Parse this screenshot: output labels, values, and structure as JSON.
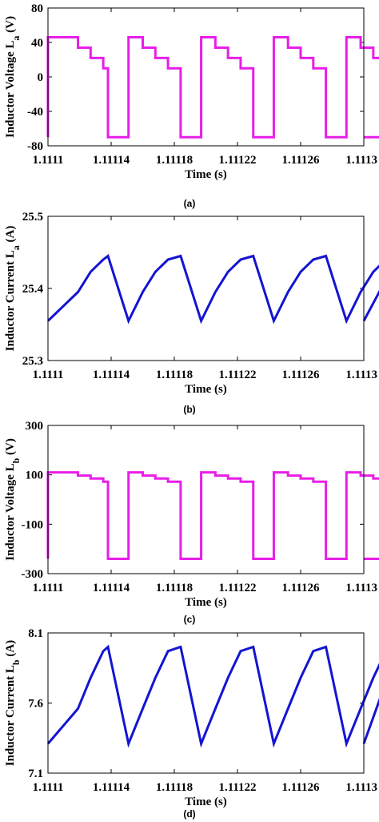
{
  "chart_data": [
    {
      "type": "line",
      "panel_label": "(a)",
      "xlabel": "Time (s)",
      "ylabel_main": "Inductor  Voltage  L",
      "ylabel_sub": "a",
      "ylabel_unit": " (V)",
      "xlim": [
        1.1111,
        1.1113
      ],
      "ylim": [
        -80,
        80
      ],
      "yticks": [
        80,
        40,
        0,
        -40,
        -80
      ],
      "ytick_labels": [
        "80",
        "40",
        "0",
        "-40",
        "-80"
      ],
      "xticks": [
        1.1111,
        1.11114,
        1.11118,
        1.11122,
        1.11126,
        1.1113
      ],
      "xtick_labels": [
        "1.1111",
        "1.11114",
        "1.11118",
        "1.11122",
        "1.11126",
        "1.1113"
      ],
      "color": "#e81ee8",
      "x": [
        1.1111,
        1.1111,
        1.111119,
        1.111119,
        1.111127,
        1.111127,
        1.111135,
        1.111135,
        1.111138,
        1.111138,
        1.111151,
        1.111151,
        1.11116,
        1.11116,
        1.111168,
        1.111168,
        1.111176,
        1.111176,
        1.111184,
        1.111184,
        1.111197,
        1.111197,
        1.111206,
        1.111206,
        1.111214,
        1.111214,
        1.111222,
        1.111222,
        1.11123,
        1.11123,
        1.111243,
        1.111243,
        1.111252,
        1.111252,
        1.11126,
        1.11126,
        1.111268,
        1.111268,
        1.111276,
        1.111276,
        1.111289,
        1.111289,
        1.111298,
        1.111298,
        1.111306,
        1.111306,
        1.111314,
        1.111314,
        1.111322,
        1.111322,
        1.1113
      ],
      "y": [
        -70,
        46,
        46,
        34,
        34,
        22,
        22,
        10,
        10,
        -70,
        -70,
        46,
        46,
        34,
        34,
        22,
        22,
        10,
        10,
        -70,
        -70,
        46,
        46,
        34,
        34,
        22,
        22,
        10,
        10,
        -70,
        -70,
        46,
        46,
        34,
        34,
        22,
        22,
        10,
        10,
        -70,
        -70,
        46,
        46,
        34,
        34,
        22,
        22,
        10,
        10,
        -70,
        -70
      ]
    },
    {
      "type": "line",
      "panel_label": "(b)",
      "xlabel": "Time (s)",
      "ylabel_main": "Inductor  Current  L",
      "ylabel_sub": "a",
      "ylabel_unit": " (A)",
      "xlim": [
        1.1111,
        1.1113
      ],
      "ylim": [
        25.3,
        25.5
      ],
      "yticks": [
        25.5,
        25.4,
        25.3
      ],
      "ytick_labels": [
        "25.5",
        "25.4",
        "25.3"
      ],
      "xticks": [
        1.1111,
        1.11114,
        1.11118,
        1.11122,
        1.11126,
        1.1113
      ],
      "xtick_labels": [
        "1.1111",
        "1.11114",
        "1.11118",
        "1.11122",
        "1.11126",
        "1.1113"
      ],
      "color": "#1414d2",
      "x": [
        1.1111,
        1.111119,
        1.111127,
        1.111135,
        1.111138,
        1.111151,
        1.11116,
        1.111168,
        1.111176,
        1.111184,
        1.111197,
        1.111206,
        1.111214,
        1.111222,
        1.11123,
        1.111243,
        1.111252,
        1.11126,
        1.111268,
        1.111276,
        1.111289,
        1.111298,
        1.111306,
        1.111314,
        1.111322,
        1.1113
      ],
      "y": [
        25.355,
        25.395,
        25.423,
        25.44,
        25.445,
        25.355,
        25.395,
        25.423,
        25.44,
        25.445,
        25.355,
        25.395,
        25.423,
        25.44,
        25.445,
        25.355,
        25.395,
        25.423,
        25.44,
        25.445,
        25.355,
        25.395,
        25.423,
        25.44,
        25.445,
        25.355
      ]
    },
    {
      "type": "line",
      "panel_label": "(c)",
      "xlabel": "Time (s)",
      "ylabel_main": "Inductor  Voltage  L",
      "ylabel_sub": "b",
      "ylabel_unit": " (V)",
      "xlim": [
        1.1111,
        1.1113
      ],
      "ylim": [
        -300,
        300
      ],
      "yticks": [
        300,
        100,
        -100,
        -300
      ],
      "ytick_labels": [
        "300",
        "100",
        "-100",
        "-300"
      ],
      "xticks": [
        1.1111,
        1.11114,
        1.11118,
        1.11122,
        1.11126,
        1.1113
      ],
      "xtick_labels": [
        "1.1111",
        "1.11114",
        "1.11118",
        "1.11122",
        "1.11126",
        "1.1113"
      ],
      "color": "#e81ee8",
      "x": [
        1.1111,
        1.1111,
        1.111119,
        1.111119,
        1.111127,
        1.111127,
        1.111135,
        1.111135,
        1.111138,
        1.111138,
        1.111151,
        1.111151,
        1.11116,
        1.11116,
        1.111168,
        1.111168,
        1.111176,
        1.111176,
        1.111184,
        1.111184,
        1.111197,
        1.111197,
        1.111206,
        1.111206,
        1.111214,
        1.111214,
        1.111222,
        1.111222,
        1.11123,
        1.11123,
        1.111243,
        1.111243,
        1.111252,
        1.111252,
        1.11126,
        1.11126,
        1.111268,
        1.111268,
        1.111276,
        1.111276,
        1.111289,
        1.111289,
        1.111298,
        1.111298,
        1.111306,
        1.111306,
        1.111314,
        1.111314,
        1.111322,
        1.111322,
        1.1113
      ],
      "y": [
        -240,
        110,
        110,
        97,
        97,
        85,
        85,
        72,
        72,
        -240,
        -240,
        110,
        110,
        97,
        97,
        85,
        85,
        72,
        72,
        -240,
        -240,
        110,
        110,
        97,
        97,
        85,
        85,
        72,
        72,
        -240,
        -240,
        110,
        110,
        97,
        97,
        85,
        85,
        72,
        72,
        -240,
        -240,
        110,
        110,
        97,
        97,
        85,
        85,
        72,
        72,
        -240,
        -240
      ]
    },
    {
      "type": "line",
      "panel_label": "(d)",
      "xlabel": "Time (s)",
      "ylabel_main": "Inductor  Current  L",
      "ylabel_sub": "b",
      "ylabel_unit": " (A)",
      "xlim": [
        1.1111,
        1.1113
      ],
      "ylim": [
        7.1,
        8.1
      ],
      "yticks": [
        8.1,
        7.6,
        7.1
      ],
      "ytick_labels": [
        "8.1",
        "7.6",
        "7.1"
      ],
      "xticks": [
        1.1111,
        1.11114,
        1.11118,
        1.11122,
        1.11126,
        1.1113
      ],
      "xtick_labels": [
        "1.1111",
        "1.11114",
        "1.11118",
        "1.11122",
        "1.11126",
        "1.1113"
      ],
      "color": "#1414d2",
      "x": [
        1.1111,
        1.111119,
        1.111127,
        1.111135,
        1.111138,
        1.111151,
        1.11116,
        1.111168,
        1.111176,
        1.111184,
        1.111197,
        1.111206,
        1.111214,
        1.111222,
        1.11123,
        1.111243,
        1.111252,
        1.11126,
        1.111268,
        1.111276,
        1.111289,
        1.111298,
        1.111306,
        1.111314,
        1.111322,
        1.1113
      ],
      "y": [
        7.31,
        7.56,
        7.78,
        7.97,
        8.0,
        7.31,
        7.56,
        7.78,
        7.97,
        8.0,
        7.31,
        7.56,
        7.78,
        7.97,
        8.0,
        7.31,
        7.56,
        7.78,
        7.97,
        8.0,
        7.31,
        7.56,
        7.78,
        7.97,
        8.0,
        7.31
      ]
    }
  ]
}
